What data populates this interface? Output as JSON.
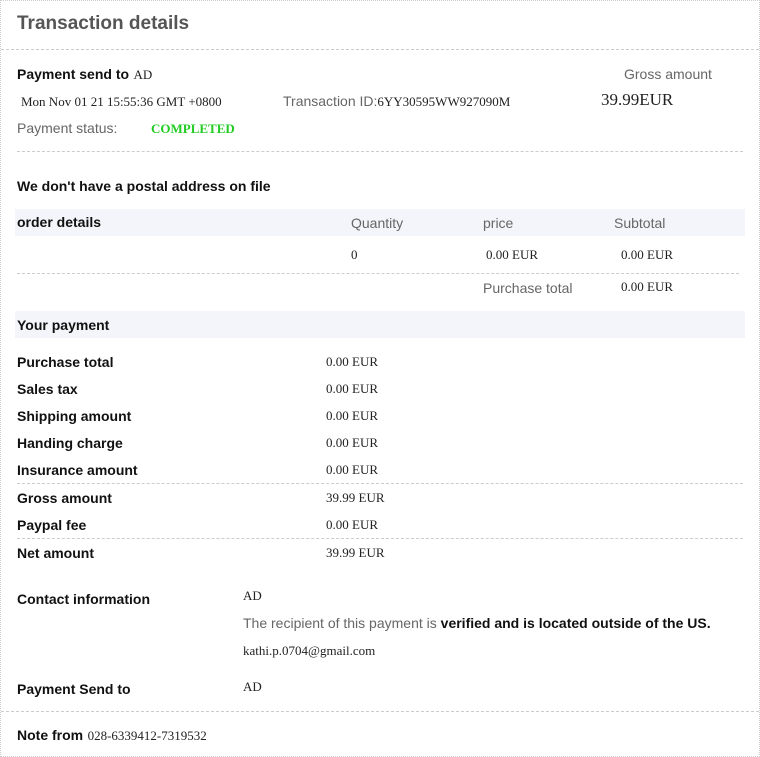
{
  "header": {
    "title": "Transaction details"
  },
  "summary": {
    "send_label": "Payment send to",
    "send_value": "AD",
    "date": "Mon Nov 01 21 15:55:36 GMT +0800",
    "txn_label": "Transaction ID:",
    "txn_id": "6YY30595WW927090M",
    "gross_label": "Gross amount",
    "gross_value": "39.99EUR",
    "status_label": "Payment status:",
    "status_value": "COMPLETED",
    "status_color": "#22cc22"
  },
  "postal": "We don't have a postal address on file",
  "order": {
    "headers": [
      "order details",
      "Quantity",
      "price",
      "Subtotal"
    ],
    "row": {
      "quantity": "0",
      "price": "0.00 EUR",
      "subtotal": "0.00 EUR"
    },
    "total_label": "Purchase total",
    "total_value": "0.00 EUR"
  },
  "payment": {
    "title": "Your payment",
    "rows": [
      {
        "label": "Purchase total",
        "value": "0.00 EUR"
      },
      {
        "label": "Sales tax",
        "value": "0.00 EUR"
      },
      {
        "label": "Shipping amount",
        "value": "0.00 EUR"
      },
      {
        "label": "Handing charge",
        "value": "0.00 EUR"
      },
      {
        "label": "Insurance amount",
        "value": "0.00 EUR"
      },
      {
        "label": "Gross amount",
        "value": "39.99 EUR"
      },
      {
        "label": "Paypal fee",
        "value": "0.00 EUR"
      },
      {
        "label": "Net amount",
        "value": "39.99 EUR"
      }
    ]
  },
  "contact": {
    "label": "Contact information",
    "name": "AD",
    "note_plain": "The recipient of this payment is ",
    "note_bold": "verified and is located outside of the US.",
    "email": "kathi.p.0704@gmail.com",
    "send_label": "Payment Send to",
    "send_value": "AD"
  },
  "note": {
    "label": "Note from",
    "value": "028-6339412-7319532"
  }
}
